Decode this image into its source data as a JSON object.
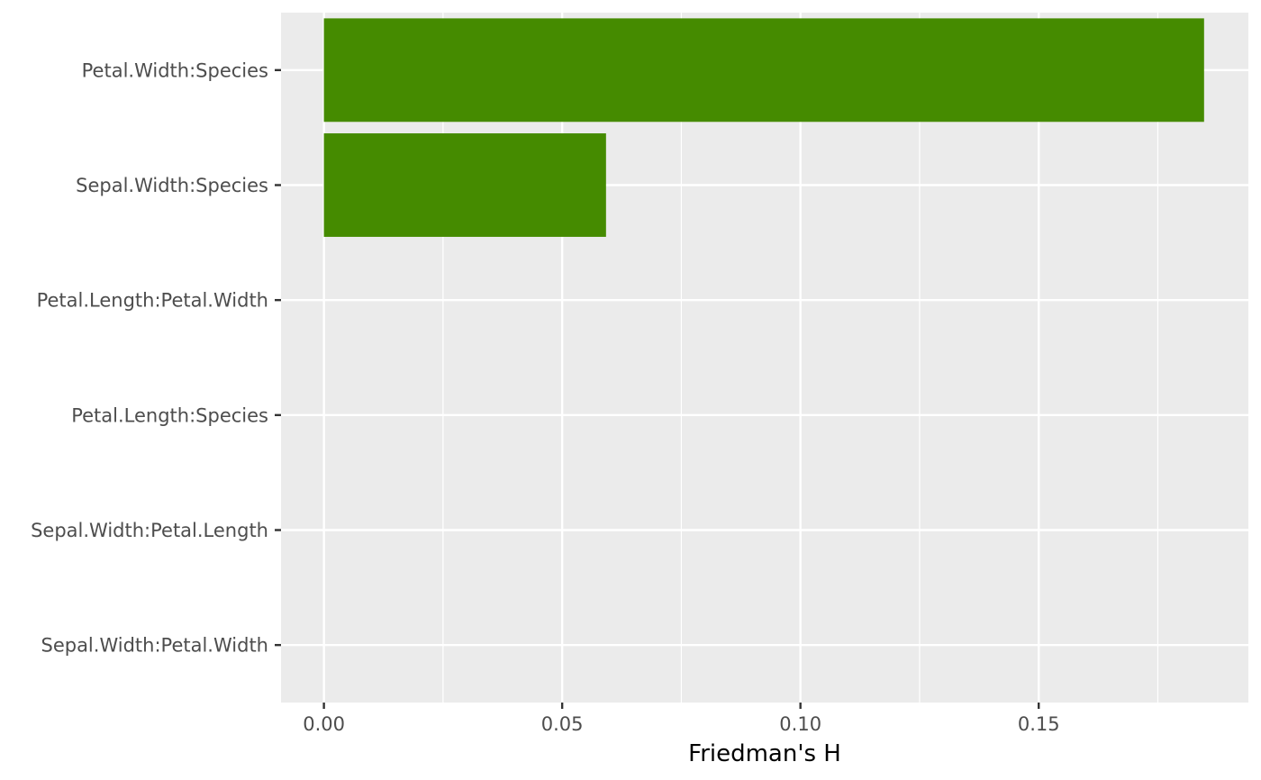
{
  "chart_data": {
    "type": "bar",
    "orientation": "horizontal",
    "categories": [
      "Petal.Width:Species",
      "Sepal.Width:Species",
      "Petal.Length:Petal.Width",
      "Petal.Length:Species",
      "Sepal.Width:Petal.Length",
      "Sepal.Width:Petal.Width"
    ],
    "values": [
      0.1847,
      0.0592,
      0,
      0,
      0,
      0
    ],
    "xlabel": "Friedman's H",
    "ylabel": "",
    "xlim": [
      -0.009,
      0.194
    ],
    "xticks": [
      0,
      0.05,
      0.1,
      0.15
    ],
    "xtick_labels": [
      "0.00",
      "0.05",
      "0.10",
      "0.15"
    ],
    "grid": true,
    "legend": "none",
    "colors": {
      "bar": "#458B00",
      "panel": "#EBEBEB",
      "grid": "#FFFFFF",
      "tick": "#333333",
      "tick_label": "#4D4D4D"
    }
  }
}
